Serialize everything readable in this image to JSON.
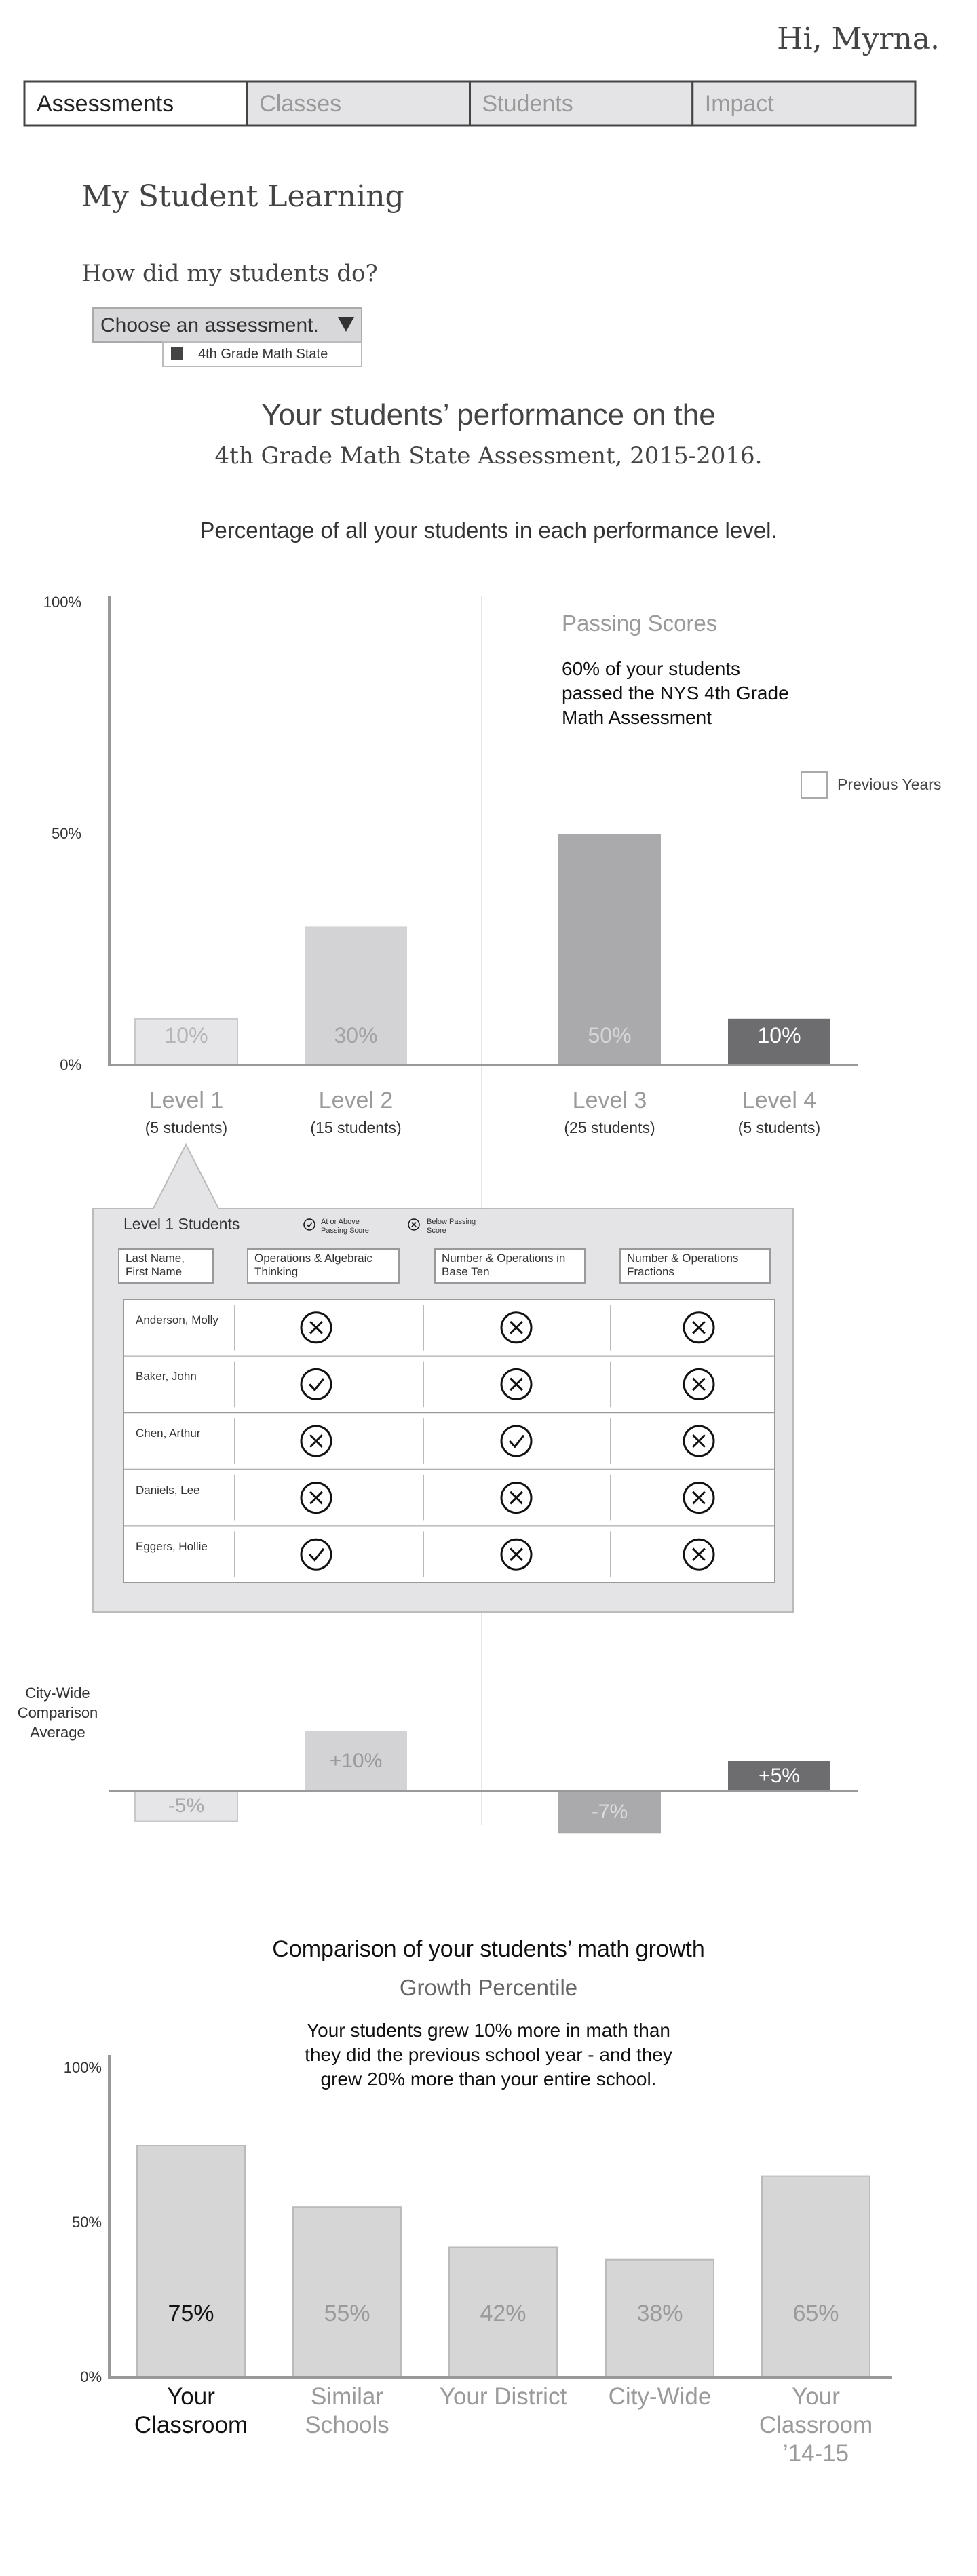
{
  "header": {
    "greeting": "Hi, Myrna."
  },
  "tabs": {
    "items": [
      "Assessments",
      "Classes",
      "Students",
      "Impact"
    ],
    "active": 0
  },
  "page": {
    "title": "My Student Learning",
    "question": "How did my students do?",
    "dropdown": {
      "label": "Choose an assessment.",
      "option": "4th Grade Math State"
    }
  },
  "chart_data": [
    {
      "type": "bar",
      "title": "Your students’ performance on the",
      "subtitle": "4th Grade Math State Assessment, 2015-2016.",
      "caption": "Percentage of all your students in each performance level.",
      "categories": [
        "Level 1",
        "Level 2",
        "Level 3",
        "Level 4"
      ],
      "sublabels": [
        "(5 students)",
        "(15 students)",
        "(25 students)",
        "(5 students)"
      ],
      "values": [
        10,
        30,
        50,
        10
      ],
      "value_labels": [
        "10%",
        "30%",
        "50%",
        "10%"
      ],
      "colors": [
        "#e6e6e8",
        "#d3d3d5",
        "#aaaaac",
        "#6d6d6f"
      ],
      "label_colors": [
        "#b5b5b7",
        "#a3a3a5",
        "#d6d6d8",
        "#ffffff"
      ],
      "ylim": [
        0,
        100
      ],
      "yticks": [
        {
          "value": 0,
          "label": "0%"
        },
        {
          "value": 50,
          "label": "50%"
        },
        {
          "value": 100,
          "label": "100%"
        }
      ],
      "annotation": {
        "title": "Passing Scores",
        "lines": [
          "60% of your students",
          "passed the NYS 4th Grade",
          "Math Assessment"
        ]
      },
      "checkbox": "Previous Years"
    },
    {
      "type": "bar",
      "label_lines": [
        "City-Wide",
        "Comparison",
        "Average"
      ],
      "values": [
        -5,
        10,
        -7,
        5
      ],
      "value_labels": [
        "-5%",
        "+10%",
        "-7%",
        "+5%"
      ],
      "colors": [
        "#e6e6e8",
        "#d3d3d5",
        "#aaaaac",
        "#6d6d6f"
      ],
      "label_colors": [
        "#a8a8aa",
        "#9a9a9c",
        "#dcdcde",
        "#ffffff"
      ]
    },
    {
      "type": "bar",
      "title": "Comparison of your students’ math growth",
      "subtitle": "Growth Percentile",
      "note_lines": [
        "Your students grew 10% more in math than",
        "they did the previous school year - and they",
        "grew 20% more than your entire school."
      ],
      "categories": [
        "Your Classroom",
        "Similar Schools",
        "Your District",
        "City-Wide",
        "Your Classroom ’14-15"
      ],
      "values": [
        75,
        55,
        42,
        38,
        65
      ],
      "value_labels": [
        "75%",
        "55%",
        "42%",
        "38%",
        "65%"
      ],
      "color": "#d6d6d6",
      "label_colors": [
        "#111111",
        "#9a9a9a",
        "#9a9a9a",
        "#9a9a9a",
        "#9a9a9a"
      ],
      "ylim": [
        0,
        100
      ],
      "yticks": [
        {
          "value": 0,
          "label": "0%"
        },
        {
          "value": 50,
          "label": "50%"
        },
        {
          "value": 100,
          "label": "100%"
        }
      ]
    }
  ],
  "level_panel": {
    "title": "Level 1 Students",
    "legend": [
      "At or Above Passing Score",
      "Below Passing Score"
    ],
    "columns": [
      "Last Name, First Name",
      "Operations & Algebraic Thinking",
      "Number & Operations in Base Ten",
      "Number & Operations Fractions"
    ],
    "rows": [
      {
        "name": "Anderson, Molly",
        "results": [
          false,
          false,
          false
        ]
      },
      {
        "name": "Baker, John",
        "results": [
          true,
          false,
          false
        ]
      },
      {
        "name": "Chen, Arthur",
        "results": [
          false,
          true,
          false
        ]
      },
      {
        "name": "Daniels, Lee",
        "results": [
          false,
          false,
          false
        ]
      },
      {
        "name": "Eggers, Hollie",
        "results": [
          true,
          false,
          false
        ]
      }
    ]
  }
}
